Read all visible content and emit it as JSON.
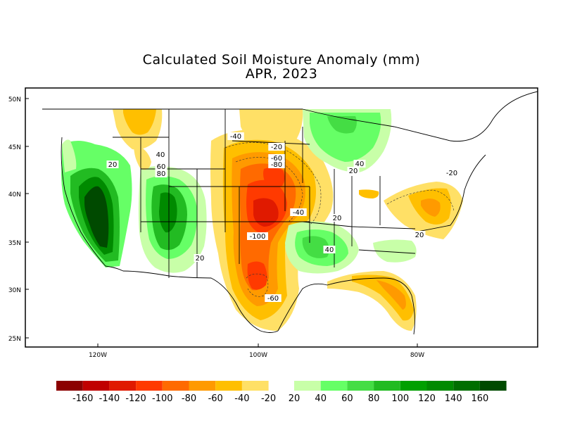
{
  "title": "Calculated Soil Moisture Anomaly (mm)",
  "subtitle": "APR, 2023",
  "lat_labels": [
    "50N",
    "45N",
    "40N",
    "35N",
    "30N",
    "25N"
  ],
  "lon_labels": [
    "120W",
    "100W",
    "80W"
  ],
  "contour_labels": [
    "20",
    "40",
    "60",
    "80",
    "-40",
    "-20",
    "-60",
    "-80",
    "-100",
    "-40",
    "20",
    "40",
    "-60",
    "20",
    "20",
    "40",
    "20",
    "-20"
  ],
  "colorbar": {
    "negative_colors": [
      "#8b0000",
      "#c00000",
      "#e01a00",
      "#ff3a00",
      "#ff6a00",
      "#ff9a00",
      "#ffbf00",
      "#ffe066"
    ],
    "positive_colors": [
      "#c8ffa8",
      "#66ff66",
      "#44dd44",
      "#22bb22",
      "#00a000",
      "#008a00",
      "#006e00",
      "#004a00"
    ],
    "labels": [
      "-160",
      "-140",
      "-120",
      "-100",
      "-80",
      "-60",
      "-40",
      "-20",
      "20",
      "40",
      "60",
      "80",
      "100",
      "120",
      "140",
      "160"
    ]
  }
}
